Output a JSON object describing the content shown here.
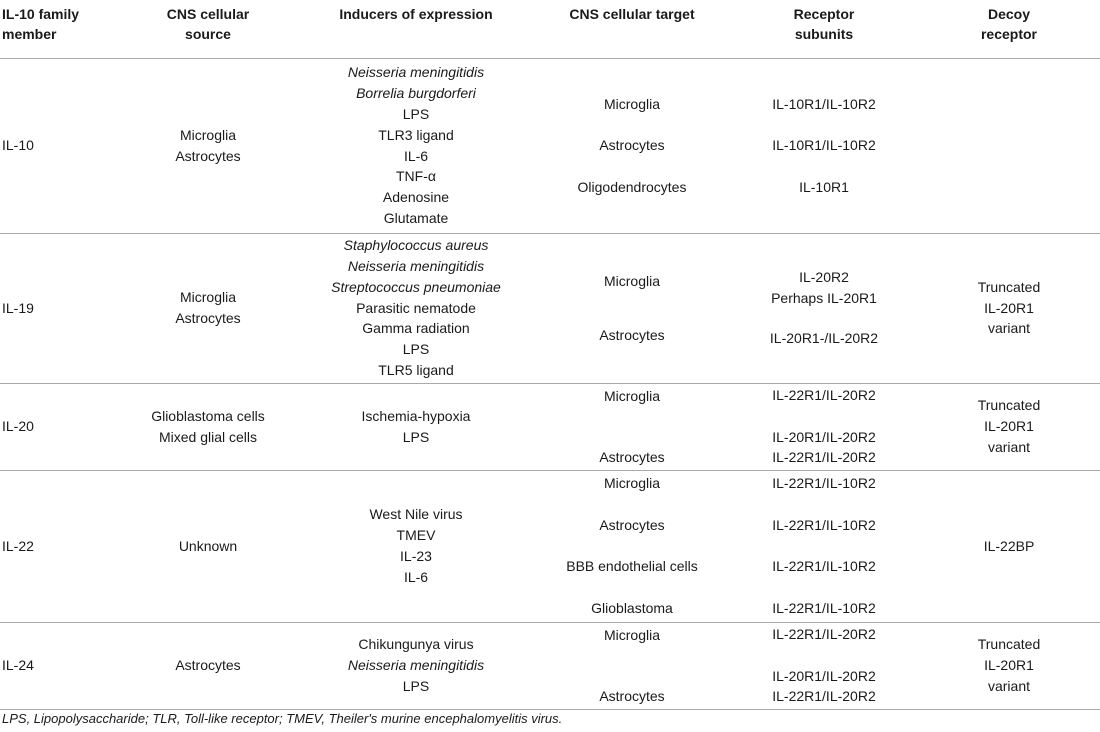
{
  "headers": {
    "member": [
      "IL-10 family",
      "member"
    ],
    "source": [
      "CNS cellular",
      "source"
    ],
    "inducers": "Inducers of expression",
    "target": "CNS cellular target",
    "receptor": [
      "Receptor",
      "subunits"
    ],
    "decoy": [
      "Decoy",
      "receptor"
    ]
  },
  "rows": [
    {
      "member": "IL-10",
      "source": [
        "Microglia",
        "Astrocytes"
      ],
      "inducers": [
        "Neisseria meningitidis",
        "Borrelia burgdorferi",
        "LPS",
        "TLR3 ligand",
        "IL-6",
        "TNF-α",
        "Adenosine",
        "Glutamate"
      ],
      "targets": [
        "Microglia",
        "Astrocytes",
        "Oligodendrocytes"
      ],
      "receptors": [
        "IL-10R1/IL-10R2",
        "IL-10R1/IL-10R2",
        "IL-10R1"
      ],
      "decoy": []
    },
    {
      "member": "IL-19",
      "source": [
        "Microglia",
        "Astrocytes"
      ],
      "inducers": [
        "Staphylococcus aureus",
        "Neisseria meningitidis",
        "Streptococcus pneumoniae",
        "Parasitic nematode",
        "Gamma radiation",
        "LPS",
        "TLR5 ligand"
      ],
      "targets": [
        "Microglia",
        "Astrocytes"
      ],
      "receptors": [
        "IL-20R2",
        "Perhaps IL-20R1",
        "IL-20R1-/IL-20R2"
      ],
      "decoy": [
        "Truncated",
        "IL-20R1",
        "variant"
      ]
    },
    {
      "member": "IL-20",
      "source": [
        "Glioblastoma cells",
        "Mixed glial cells"
      ],
      "inducers": [
        "Ischemia-hypoxia",
        "LPS"
      ],
      "targets": [
        "Microglia",
        "Astrocytes"
      ],
      "receptors": [
        "IL-22R1/IL-20R2",
        "IL-20R1/IL-20R2",
        "IL-22R1/IL-20R2"
      ],
      "decoy": [
        "Truncated",
        "IL-20R1",
        "variant"
      ]
    },
    {
      "member": "IL-22",
      "source": [
        "Unknown"
      ],
      "inducers": [
        "West Nile virus",
        "TMEV",
        "IL-23",
        "IL-6"
      ],
      "targets": [
        "Microglia",
        "Astrocytes",
        "BBB endothelial cells",
        "Glioblastoma"
      ],
      "receptors": [
        "IL-22R1/IL-10R2",
        "IL-22R1/IL-10R2",
        "IL-22R1/IL-10R2",
        "IL-22R1/IL-10R2"
      ],
      "decoy": [
        "IL-22BP"
      ]
    },
    {
      "member": "IL-24",
      "source": [
        "Astrocytes"
      ],
      "inducers": [
        "Chikungunya virus",
        "Neisseria meningitidis",
        "LPS"
      ],
      "targets": [
        "Microglia",
        "Astrocytes"
      ],
      "receptors": [
        "IL-22R1/IL-20R2",
        "IL-20R1/IL-20R2",
        "IL-22R1/IL-20R2"
      ],
      "decoy": [
        "Truncated",
        "IL-20R1",
        "variant"
      ]
    }
  ],
  "footnote": "LPS, Lipopolysaccharide; TLR, Toll-like receptor; TMEV, Theiler's murine encephalomyelitis virus."
}
